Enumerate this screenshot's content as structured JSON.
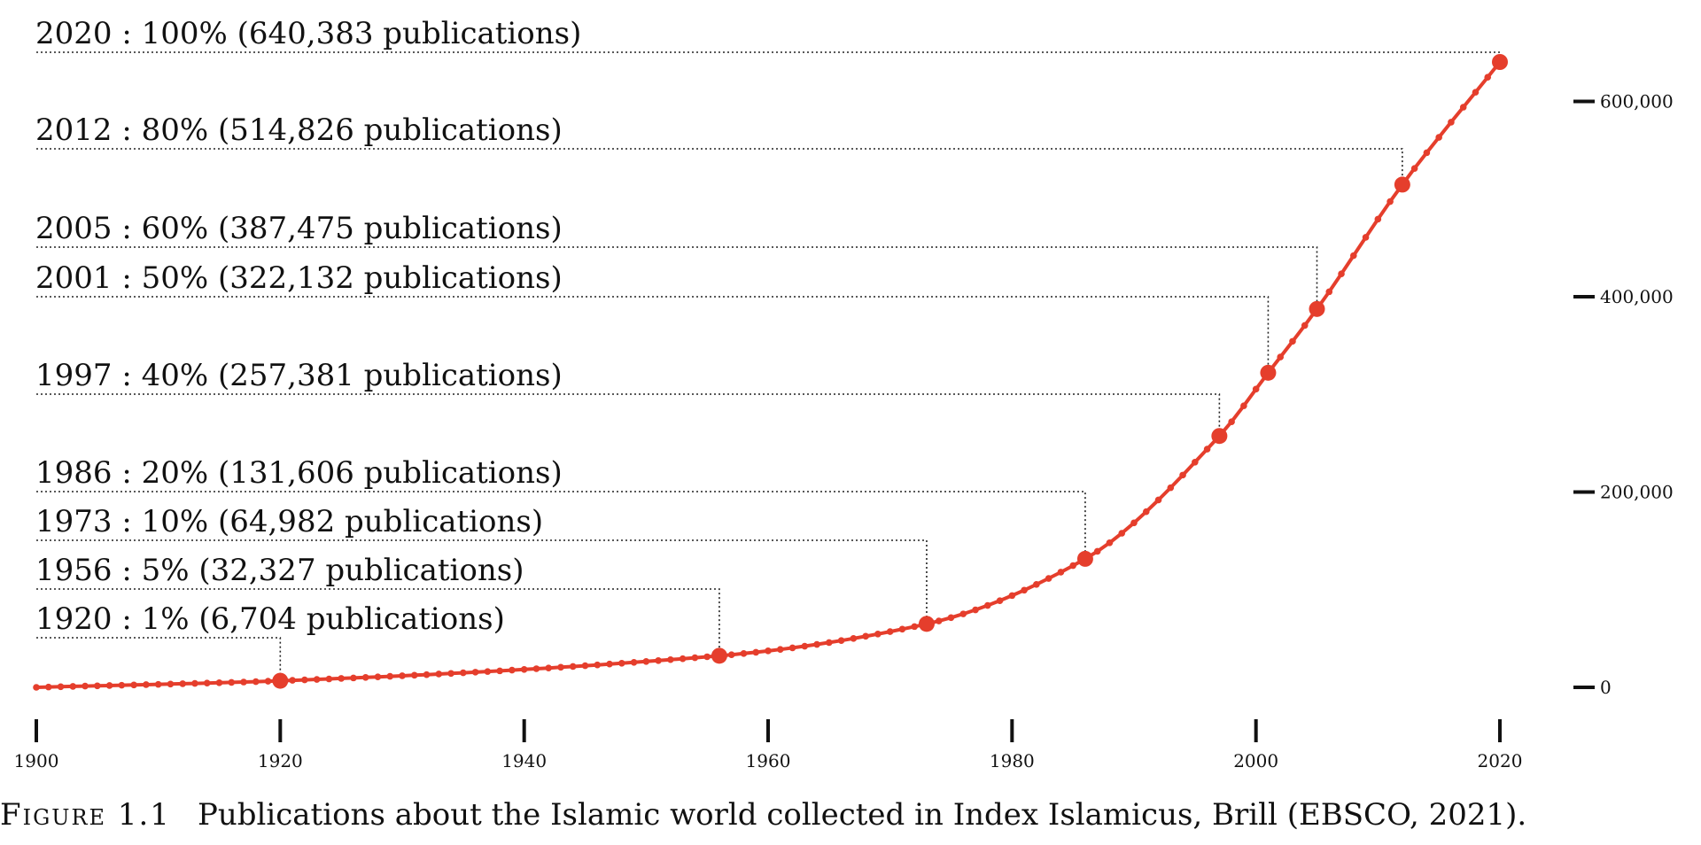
{
  "chart_data": {
    "type": "line",
    "title": "",
    "xlabel": "",
    "ylabel": "",
    "xlim": [
      1900,
      2020
    ],
    "ylim": [
      0,
      640383
    ],
    "xticks": [
      1900,
      1920,
      1940,
      1960,
      1980,
      2000,
      2020
    ],
    "xtick_labels": [
      "1900",
      "1920",
      "1940",
      "1960",
      "1980",
      "2000",
      "2020"
    ],
    "yticks": [
      0,
      200000,
      400000,
      600000
    ],
    "ytick_labels": [
      "0",
      "200,000",
      "400,000",
      "600,000"
    ],
    "grid": false,
    "line_color": "#e53e2c",
    "series": [
      {
        "x": [
          1900,
          1920,
          1956,
          1973,
          1986,
          1997,
          2001,
          2005,
          2012,
          2020
        ],
        "values": [
          0,
          6704,
          32327,
          64982,
          131606,
          257381,
          322132,
          387475,
          514826,
          640383
        ]
      }
    ],
    "annotations": [
      {
        "x": 2020,
        "y": 640383,
        "label": "2020 : 100% (640,383 publications)"
      },
      {
        "x": 2012,
        "y": 514826,
        "label": "2012 : 80% (514,826 publications)"
      },
      {
        "x": 2005,
        "y": 387475,
        "label": "2005 : 60% (387,475 publications)"
      },
      {
        "x": 2001,
        "y": 322132,
        "label": "2001 : 50% (322,132 publications)"
      },
      {
        "x": 1997,
        "y": 257381,
        "label": "1997 : 40% (257,381 publications)"
      },
      {
        "x": 1986,
        "y": 131606,
        "label": "1986 : 20% (131,606 publications)"
      },
      {
        "x": 1973,
        "y": 64982,
        "label": "1973 : 10% (64,982 publications)"
      },
      {
        "x": 1956,
        "y": 32327,
        "label": "1956 : 5% (32,327 publications)"
      },
      {
        "x": 1920,
        "y": 6704,
        "label": "1920 : 1% (6,704 publications)"
      }
    ]
  },
  "caption": {
    "figure_label": "Figure 1.1",
    "text": "Publications about the Islamic world collected in Index Islamicus, Brill (EBSCO, 2021)."
  }
}
